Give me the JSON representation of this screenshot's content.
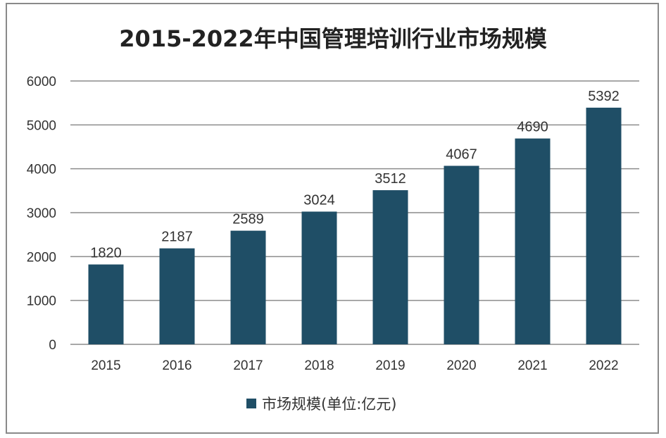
{
  "chart_data": {
    "type": "bar",
    "title": "2015-2022年中国管理培训行业市场规模",
    "categories": [
      "2015",
      "2016",
      "2017",
      "2018",
      "2019",
      "2020",
      "2021",
      "2022"
    ],
    "series": [
      {
        "name": "市场规模(单位:亿元)",
        "values": [
          1820,
          2187,
          2589,
          3024,
          3512,
          4067,
          4690,
          5392
        ]
      }
    ],
    "ylim": [
      0,
      6000
    ],
    "yticks": [
      0,
      1000,
      2000,
      3000,
      4000,
      5000,
      6000
    ],
    "grid": true,
    "legend": "bottom",
    "data_labels": true,
    "colors": {
      "bar": "#1f4e66",
      "grid": "#8c8c8c"
    }
  }
}
